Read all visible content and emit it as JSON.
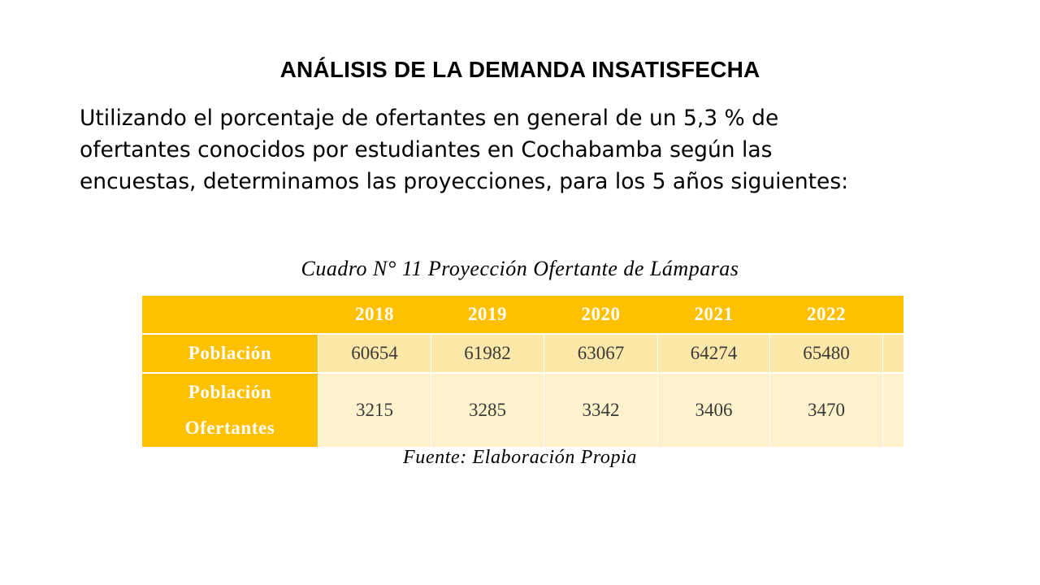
{
  "slide": {
    "title": "ANÁLISIS DE LA DEMANDA INSATISFECHA",
    "body_lines": [
      "Utilizando el porcentaje de ofertantes en general de un 5,3 % de",
      "ofertantes conocidos por estudiantes en Cochabamba según las",
      "encuestas, determinamos las proyecciones, para los 5 años siguientes:"
    ]
  },
  "table": {
    "caption": "Cuadro N° 11 Proyección Ofertante de Lámparas",
    "years": [
      "2018",
      "2019",
      "2020",
      "2021",
      "2022"
    ],
    "rows": [
      {
        "label": "Población",
        "values": [
          "60654",
          "61982",
          "63067",
          "64274",
          "65480"
        ]
      },
      {
        "label_line1": "Población",
        "label_line2": "Ofertantes",
        "values": [
          "3215",
          "3285",
          "3342",
          "3406",
          "3470"
        ]
      }
    ],
    "source_label": "Fuente:",
    "source_text": "Elaboración Propia"
  },
  "colors": {
    "header_bg": "#ffc000",
    "row1_bg": "#fde7a9",
    "row2_bg": "#fef2cc"
  }
}
